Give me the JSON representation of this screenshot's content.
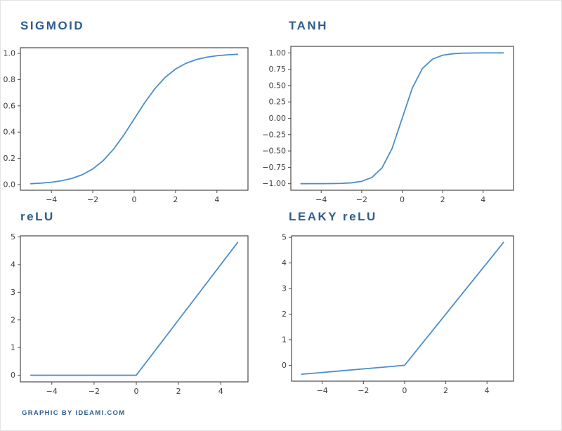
{
  "style": {
    "title_color": "#2d5d8c",
    "line_color": "#4b8ec9",
    "axis_color": "#4a4a4a",
    "tick_label_color": "#3d3d3d",
    "background": "#ffffff"
  },
  "footer": {
    "credit": "GRAPHIC BY IDEAMI.COM"
  },
  "chart_data": [
    {
      "id": "sigmoid",
      "type": "line",
      "title": "SIGMOID",
      "x": [
        -5,
        -4.5,
        -4,
        -3.5,
        -3,
        -2.5,
        -2,
        -1.5,
        -1,
        -0.5,
        0,
        0.5,
        1,
        1.5,
        2,
        2.5,
        3,
        3.5,
        4,
        4.5,
        5
      ],
      "y": [
        0.0067,
        0.011,
        0.018,
        0.0293,
        0.0474,
        0.0759,
        0.1192,
        0.1824,
        0.2689,
        0.3775,
        0.5,
        0.6225,
        0.7311,
        0.8176,
        0.8808,
        0.9241,
        0.9526,
        0.9707,
        0.982,
        0.989,
        0.9933
      ],
      "xlim": [
        -5.5,
        5.5
      ],
      "ylim": [
        -0.043,
        1.043
      ],
      "xtick_values": [
        -4,
        -2,
        0,
        2,
        4
      ],
      "xtick_labels": [
        "−4",
        "−2",
        "0",
        "2",
        "4"
      ],
      "ytick_values": [
        0.0,
        0.2,
        0.4,
        0.6,
        0.8,
        1.0
      ],
      "ytick_labels": [
        "0.0",
        "0.2",
        "0.4",
        "0.6",
        "0.8",
        "1.0"
      ],
      "grid": false,
      "legend": false
    },
    {
      "id": "tanh",
      "type": "line",
      "title": "TANH",
      "x": [
        -5,
        -4.5,
        -4,
        -3.5,
        -3,
        -2.5,
        -2,
        -1.5,
        -1,
        -0.5,
        0,
        0.5,
        1,
        1.5,
        2,
        2.5,
        3,
        3.5,
        4,
        4.5,
        5
      ],
      "y": [
        -0.9999,
        -0.9998,
        -0.9993,
        -0.9982,
        -0.9951,
        -0.9866,
        -0.964,
        -0.9051,
        -0.7616,
        -0.4621,
        0,
        0.4621,
        0.7616,
        0.9051,
        0.964,
        0.9866,
        0.9951,
        0.9982,
        0.9993,
        0.9998,
        0.9999
      ],
      "xlim": [
        -5.5,
        5.5
      ],
      "ylim": [
        -1.1,
        1.1
      ],
      "xtick_values": [
        -4,
        -2,
        0,
        2,
        4
      ],
      "xtick_labels": [
        "−4",
        "−2",
        "0",
        "2",
        "4"
      ],
      "ytick_values": [
        1.0,
        0.75,
        0.5,
        0.25,
        0.0,
        -0.25,
        -0.5,
        -0.75,
        -1.0
      ],
      "ytick_labels": [
        "1.00",
        "0.75",
        "0.50",
        "0.25",
        "0.00",
        "−0.25",
        "−0.50",
        "−0.75",
        "−1.00"
      ],
      "grid": false,
      "legend": false
    },
    {
      "id": "relu",
      "type": "line",
      "title": "reLU",
      "x": [
        -5,
        -4,
        -3,
        -2,
        -1,
        0,
        1,
        2,
        3,
        4,
        4.8
      ],
      "y": [
        0,
        0,
        0,
        0,
        0,
        0,
        1,
        2,
        3,
        4,
        4.8
      ],
      "xlim": [
        -5.49,
        5.29
      ],
      "ylim": [
        -0.24,
        5.04
      ],
      "xtick_values": [
        -4,
        -2,
        0,
        2,
        4
      ],
      "xtick_labels": [
        "−4",
        "−2",
        "0",
        "2",
        "4"
      ],
      "ytick_values": [
        0,
        1,
        2,
        3,
        4,
        5
      ],
      "ytick_labels": [
        "0",
        "1",
        "2",
        "3",
        "4",
        "5"
      ],
      "grid": false,
      "legend": false
    },
    {
      "id": "leaky_relu",
      "type": "line",
      "title": "LEAKY reLU",
      "x": [
        -5,
        -4,
        -3,
        -2,
        -1,
        0,
        1,
        2,
        3,
        4,
        4.8
      ],
      "y": [
        -0.35,
        -0.28,
        -0.21,
        -0.14,
        -0.07,
        0,
        1,
        2,
        3,
        4,
        4.8
      ],
      "xlim": [
        -5.49,
        5.29
      ],
      "ylim": [
        -0.62,
        5.06
      ],
      "xtick_values": [
        -4,
        -2,
        0,
        2,
        4
      ],
      "xtick_labels": [
        "−4",
        "−2",
        "0",
        "2",
        "4"
      ],
      "ytick_values": [
        0,
        1,
        2,
        3,
        4,
        5
      ],
      "ytick_labels": [
        "0",
        "1",
        "2",
        "3",
        "4",
        "5"
      ],
      "grid": false,
      "legend": false
    }
  ]
}
